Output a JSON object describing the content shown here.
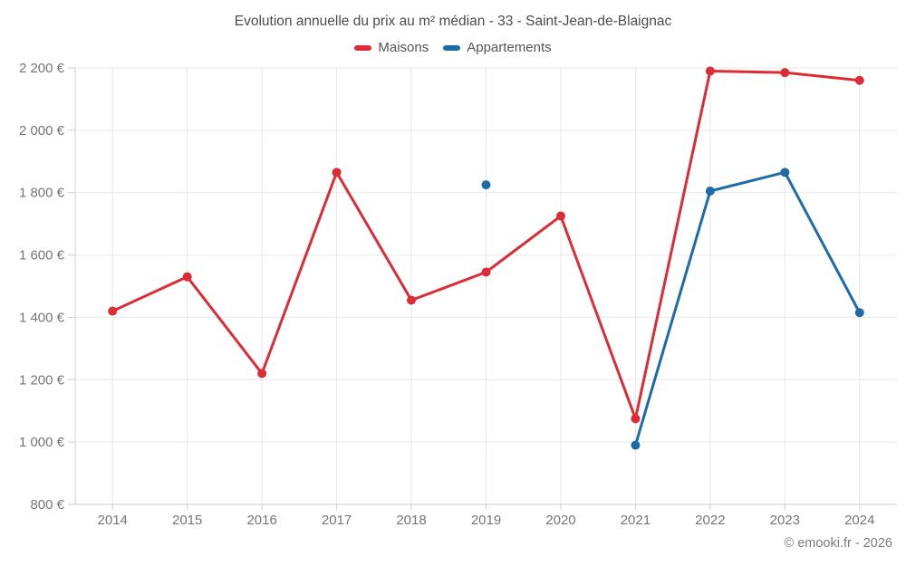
{
  "header": {
    "title": "Evolution annuelle du prix au m² médian - 33 - Saint-Jean-de-Blaignac"
  },
  "footer": {
    "credit": "© emooki.fr - 2026"
  },
  "colors": {
    "maisons": "#dc2c35",
    "appartements": "#1b6ca8",
    "grid": "#e8e8e8",
    "axis": "#cfcfcf",
    "tick": "#cfcfcf",
    "axis_label": "#757575",
    "title": "#4c4c4c"
  },
  "chart_data": {
    "type": "line",
    "title": "Evolution annuelle du prix au m² médian - 33 - Saint-Jean-de-Blaignac",
    "categories": [
      "2014",
      "2015",
      "2016",
      "2017",
      "2018",
      "2019",
      "2020",
      "2021",
      "2022",
      "2023",
      "2024"
    ],
    "series": [
      {
        "name": "Maisons",
        "color": "#dc2c35",
        "values": [
          1420,
          1530,
          1220,
          1865,
          1455,
          1545,
          1725,
          1075,
          2190,
          2185,
          2160
        ]
      },
      {
        "name": "Appartements",
        "color": "#1b6ca8",
        "values": [
          null,
          null,
          null,
          null,
          null,
          1825,
          null,
          990,
          1805,
          1865,
          1415
        ]
      }
    ],
    "ylim": [
      800,
      2200
    ],
    "ytick_step": 200,
    "yticks": [
      "800 €",
      "1 000 €",
      "1 200 €",
      "1 400 €",
      "1 600 €",
      "1 800 €",
      "2 000 €",
      "2 200 €"
    ],
    "xlabel": "",
    "ylabel": "",
    "unit": "€",
    "grid": true,
    "legend_position": "top",
    "marker_radius": 5,
    "line_width": 3
  }
}
